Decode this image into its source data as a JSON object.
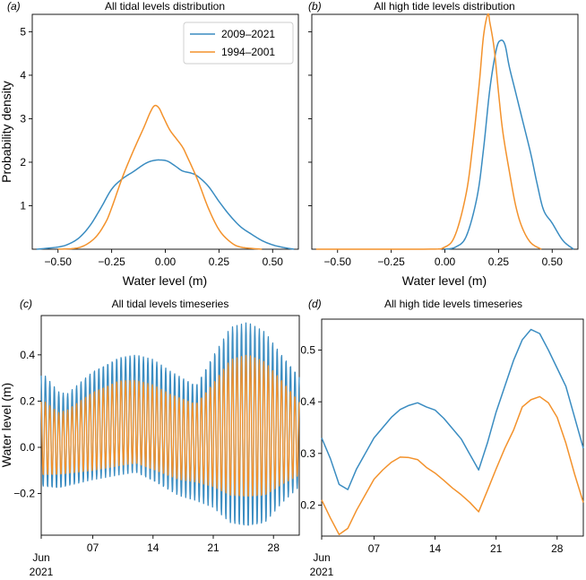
{
  "colors": {
    "series_2009_2021": "#3a8cc1",
    "series_1994_2001": "#f3922c"
  },
  "legend": {
    "entries": [
      "2009–2021",
      "1994–2001"
    ],
    "placement": "upper-right of panel (a)"
  },
  "chart_data": [
    {
      "id": "a",
      "type": "line",
      "panel_letter": "(a)",
      "title": "All tidal levels distribution",
      "xlabel": "Water level (m)",
      "ylabel": "Probability density",
      "xlim": [
        -0.62,
        0.62
      ],
      "ylim": [
        0,
        5.4
      ],
      "xticks": [
        -0.5,
        -0.25,
        0.0,
        0.25,
        0.5
      ],
      "xtick_labels": [
        "−0.50",
        "−0.25",
        "0.00",
        "0.25",
        "0.50"
      ],
      "yticks": [
        1,
        2,
        3,
        4,
        5
      ],
      "ytick_labels": [
        "1",
        "2",
        "3",
        "4",
        "5"
      ],
      "series": [
        {
          "name": "2009–2021",
          "x": [
            -0.6,
            -0.5,
            -0.45,
            -0.4,
            -0.35,
            -0.3,
            -0.25,
            -0.2,
            -0.15,
            -0.1,
            -0.07,
            -0.04,
            -0.02,
            0.0,
            0.02,
            0.05,
            0.08,
            0.12,
            0.15,
            0.2,
            0.25,
            0.3,
            0.35,
            0.4,
            0.45,
            0.5,
            0.55,
            0.6
          ],
          "y": [
            0.0,
            0.05,
            0.12,
            0.27,
            0.55,
            0.95,
            1.38,
            1.62,
            1.78,
            1.95,
            2.02,
            2.05,
            2.05,
            2.04,
            2.0,
            1.9,
            1.8,
            1.75,
            1.68,
            1.45,
            1.1,
            0.78,
            0.52,
            0.35,
            0.2,
            0.1,
            0.04,
            0.0
          ]
        },
        {
          "name": "1994–2001",
          "x": [
            -0.5,
            -0.4,
            -0.33,
            -0.28,
            -0.25,
            -0.2,
            -0.15,
            -0.1,
            -0.07,
            -0.05,
            -0.03,
            -0.01,
            0.02,
            0.05,
            0.08,
            0.1,
            0.15,
            0.2,
            0.25,
            0.3,
            0.35,
            0.45
          ],
          "y": [
            0.0,
            0.04,
            0.25,
            0.6,
            0.95,
            1.65,
            2.25,
            2.8,
            3.15,
            3.3,
            3.25,
            3.05,
            2.75,
            2.55,
            2.35,
            2.15,
            1.6,
            0.95,
            0.45,
            0.18,
            0.05,
            0.0
          ]
        }
      ]
    },
    {
      "id": "b",
      "type": "line",
      "panel_letter": "(b)",
      "title": "All high tide levels distribution",
      "xlabel": "Water level (m)",
      "ylabel": "",
      "xlim": [
        -0.62,
        0.62
      ],
      "ylim": [
        0,
        5.4
      ],
      "xticks": [
        -0.5,
        -0.25,
        0.0,
        0.25,
        0.5
      ],
      "xtick_labels": [
        "−0.50",
        "−0.25",
        "0.00",
        "0.25",
        "0.50"
      ],
      "yticks": [
        1,
        2,
        3,
        4,
        5
      ],
      "ytick_labels": [],
      "series": [
        {
          "name": "2009–2021",
          "x": [
            0.0,
            0.05,
            0.1,
            0.15,
            0.18,
            0.21,
            0.24,
            0.26,
            0.28,
            0.3,
            0.33,
            0.36,
            0.4,
            0.43,
            0.46,
            0.5,
            0.55,
            0.6
          ],
          "y": [
            0.0,
            0.05,
            0.3,
            1.2,
            2.3,
            3.7,
            4.6,
            4.8,
            4.7,
            4.2,
            3.6,
            3.0,
            2.2,
            1.5,
            0.9,
            0.6,
            0.2,
            0.0
          ]
        },
        {
          "name": "1994–2001",
          "x": [
            -0.6,
            -0.1,
            0.0,
            0.05,
            0.1,
            0.13,
            0.16,
            0.18,
            0.2,
            0.21,
            0.23,
            0.25,
            0.27,
            0.3,
            0.33,
            0.36,
            0.4,
            0.45
          ],
          "y": [
            0.0,
            0.0,
            0.05,
            0.35,
            1.3,
            2.4,
            3.8,
            4.9,
            5.4,
            5.2,
            4.6,
            3.6,
            2.7,
            1.8,
            1.0,
            0.5,
            0.15,
            0.0
          ]
        }
      ]
    },
    {
      "id": "c",
      "type": "line",
      "panel_letter": "(c)",
      "title": "All tidal levels timeseries",
      "xlabel": "",
      "ylabel": "Water level (m)",
      "xlim": [
        1,
        31
      ],
      "ylim": [
        -0.38,
        0.57
      ],
      "xticks": [
        7,
        14,
        21,
        28
      ],
      "xtick_labels": [
        "07",
        "14",
        "21",
        "28"
      ],
      "x_start_label": [
        "Jun",
        "2021"
      ],
      "yticks": [
        -0.2,
        0.0,
        0.2,
        0.4
      ],
      "ytick_labels": [
        "−0.2",
        "0.0",
        "0.2",
        "0.4"
      ],
      "series": [
        {
          "name": "2009–2021",
          "cycles_per_day": 1.93,
          "high_envelope": {
            "day": [
              1,
              3,
              4,
              7,
              10,
              12,
              14,
              16,
              19,
              21,
              23,
              25,
              27,
              29,
              31
            ],
            "value": [
              0.33,
              0.24,
              0.23,
              0.33,
              0.39,
              0.4,
              0.38,
              0.33,
              0.27,
              0.4,
              0.52,
              0.54,
              0.5,
              0.4,
              0.31
            ]
          },
          "low_envelope": {
            "day": [
              1,
              3,
              7,
              10,
              12,
              14,
              17,
              19,
              21,
              23,
              25,
              27,
              29,
              31
            ],
            "value": [
              -0.17,
              -0.18,
              -0.14,
              -0.12,
              -0.11,
              -0.15,
              -0.21,
              -0.23,
              -0.26,
              -0.33,
              -0.35,
              -0.33,
              -0.24,
              -0.17
            ]
          }
        },
        {
          "name": "1994–2001",
          "cycles_per_day": 1.93,
          "high_envelope": {
            "day": [
              1,
              3,
              4,
              7,
              10,
              12,
              14,
              16,
              19,
              21,
              23,
              25,
              27,
              29,
              31
            ],
            "value": [
              0.21,
              0.15,
              0.16,
              0.24,
              0.29,
              0.29,
              0.27,
              0.23,
              0.19,
              0.28,
              0.38,
              0.4,
              0.37,
              0.29,
              0.2
            ]
          },
          "low_envelope": {
            "day": [
              1,
              3,
              7,
              10,
              12,
              14,
              17,
              19,
              21,
              23,
              25,
              27,
              29,
              31
            ],
            "value": [
              -0.12,
              -0.12,
              -0.1,
              -0.08,
              -0.07,
              -0.1,
              -0.14,
              -0.15,
              -0.17,
              -0.21,
              -0.22,
              -0.21,
              -0.16,
              -0.12
            ]
          }
        }
      ]
    },
    {
      "id": "d",
      "type": "line",
      "panel_letter": "(d)",
      "title": "All high tide levels timeseries",
      "xlabel": "",
      "ylabel": "",
      "xlim": [
        1,
        31
      ],
      "ylim": [
        0.14,
        0.56
      ],
      "xticks": [
        7,
        14,
        21,
        28
      ],
      "xtick_labels": [
        "07",
        "14",
        "21",
        "28"
      ],
      "x_start_label": [
        "Jun",
        "2021"
      ],
      "yticks": [
        0.2,
        0.3,
        0.4,
        0.5
      ],
      "ytick_labels": [
        "0.2",
        "0.3",
        "0.4",
        "0.5"
      ],
      "series": [
        {
          "name": "2009–2021",
          "x": [
            1,
            2,
            3,
            4,
            5,
            6,
            7,
            8,
            9,
            10,
            11,
            12,
            13,
            14,
            15,
            16,
            17,
            18,
            19,
            20,
            21,
            22,
            23,
            24,
            25,
            26,
            27,
            28,
            29,
            30,
            31
          ],
          "y": [
            0.33,
            0.29,
            0.24,
            0.23,
            0.27,
            0.3,
            0.33,
            0.35,
            0.37,
            0.385,
            0.393,
            0.398,
            0.39,
            0.384,
            0.368,
            0.348,
            0.328,
            0.298,
            0.268,
            0.32,
            0.38,
            0.43,
            0.48,
            0.52,
            0.54,
            0.532,
            0.5,
            0.465,
            0.43,
            0.37,
            0.31
          ]
        },
        {
          "name": "1994–2001",
          "x": [
            1,
            2,
            3,
            4,
            5,
            6,
            7,
            8,
            9,
            10,
            11,
            12,
            13,
            14,
            15,
            16,
            17,
            18,
            19,
            20,
            21,
            22,
            23,
            24,
            25,
            26,
            27,
            28,
            29,
            30,
            31
          ],
          "y": [
            0.21,
            0.175,
            0.143,
            0.155,
            0.19,
            0.22,
            0.25,
            0.268,
            0.283,
            0.293,
            0.292,
            0.288,
            0.273,
            0.262,
            0.248,
            0.233,
            0.22,
            0.205,
            0.187,
            0.228,
            0.27,
            0.31,
            0.345,
            0.39,
            0.404,
            0.41,
            0.398,
            0.37,
            0.32,
            0.26,
            0.205
          ]
        }
      ]
    }
  ]
}
